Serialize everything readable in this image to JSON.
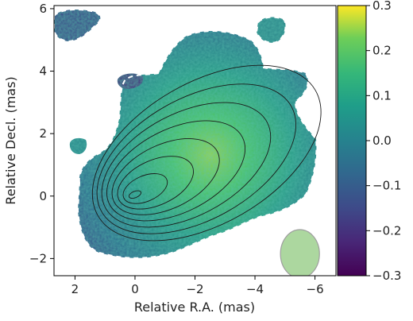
{
  "chart_data": {
    "type": "heatmap",
    "title": "",
    "xlabel": "Relative R.A. (mas)",
    "ylabel": "Relative Decl. (mas)",
    "xlim": [
      2.7,
      -6.7
    ],
    "ylim": [
      -2.55,
      6.1
    ],
    "xticks": [
      2,
      0,
      -2,
      -4,
      -6
    ],
    "xtick_labels": [
      "2",
      "0",
      "−2",
      "−4",
      "−6"
    ],
    "yticks": [
      -2,
      0,
      2,
      4,
      6
    ],
    "ytick_labels": [
      "−2",
      "0",
      "2",
      "4",
      "6"
    ],
    "colorbar": {
      "colormap": "viridis",
      "range": [
        -0.3,
        0.3
      ],
      "ticks": [
        0.3,
        0.2,
        0.1,
        0.0,
        -0.1,
        -0.2,
        -0.3
      ],
      "tick_labels": [
        "0.3",
        "0.2",
        "0.1",
        "0.0",
        "−0.1",
        "−0.2",
        "−0.3"
      ]
    },
    "map_description_values": {
      "background_level": 0.0,
      "peak_level_approx": 0.2,
      "peak_location": [
        -2.2,
        1.1
      ]
    },
    "contours": {
      "center": [
        0.0,
        0.05
      ],
      "levels": 8
    },
    "beam": {
      "center": [
        -5.5,
        -1.85
      ],
      "major_mas": 1.3,
      "minor_mas": 1.55,
      "color": "#a8d59a"
    },
    "colors": {
      "outline_dash": "#ffffff",
      "contour": "#1a1a1a"
    }
  }
}
